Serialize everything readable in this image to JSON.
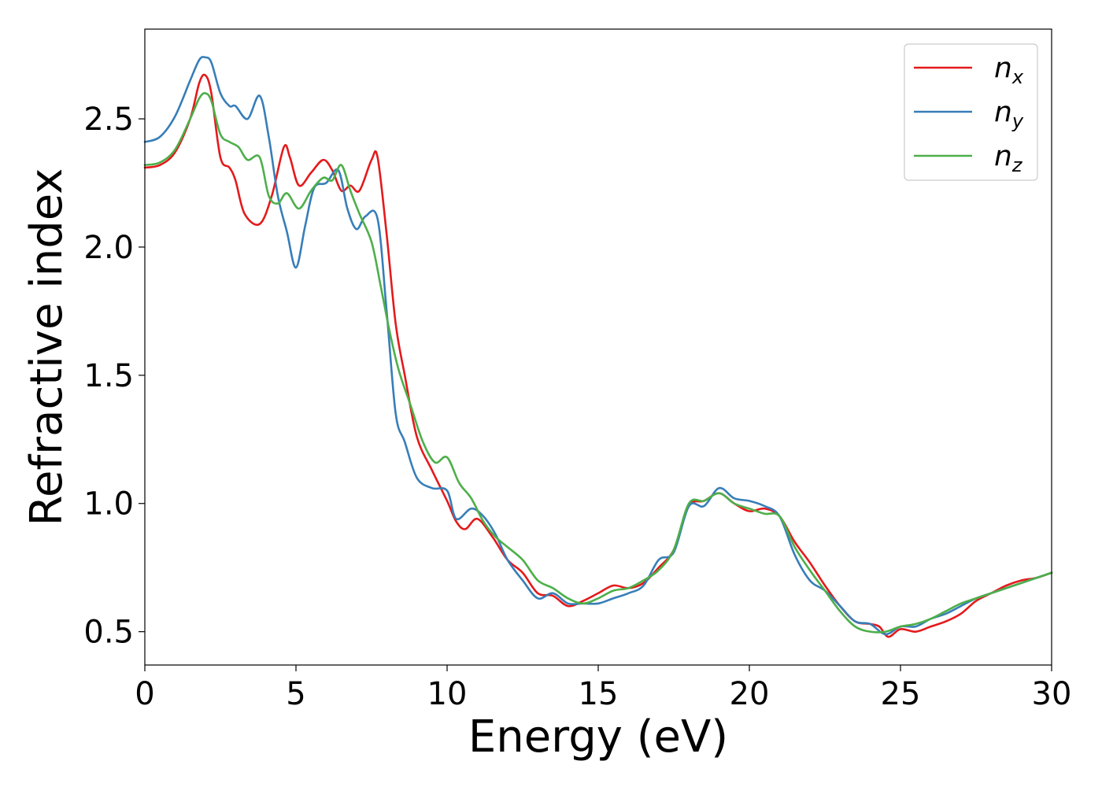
{
  "chart_data": {
    "type": "line",
    "title": "",
    "xlabel": "Energy (eV)",
    "ylabel": "Refractive index",
    "xlim": [
      0,
      30
    ],
    "ylim": [
      0.37,
      2.85
    ],
    "xticks": [
      0,
      5,
      10,
      15,
      20,
      25,
      30
    ],
    "xtick_labels": [
      "0",
      "5",
      "10",
      "15",
      "20",
      "25",
      "30"
    ],
    "yticks": [
      0.5,
      1.0,
      1.5,
      2.0,
      2.5
    ],
    "ytick_labels": [
      "0.5",
      "1.0",
      "1.5",
      "2.0",
      "2.5"
    ],
    "grid": false,
    "legend_position": "top-right",
    "series": [
      {
        "name": "n",
        "subscript": "x",
        "color": "#e41a1c",
        "x": [
          0,
          0.5,
          1.0,
          1.5,
          1.8,
          2.0,
          2.2,
          2.5,
          2.8,
          3.0,
          3.3,
          3.8,
          4.2,
          4.6,
          4.8,
          5.1,
          5.5,
          5.9,
          6.2,
          6.5,
          6.8,
          7.1,
          7.5,
          7.7,
          8.0,
          8.3,
          8.6,
          9.0,
          9.5,
          10.0,
          10.3,
          10.6,
          11.0,
          11.5,
          12.0,
          12.5,
          13.0,
          13.5,
          14.0,
          14.5,
          15.0,
          15.5,
          16.0,
          16.5,
          17.0,
          17.5,
          18.0,
          18.5,
          19.0,
          19.5,
          20.0,
          20.5,
          21.0,
          21.5,
          22.0,
          22.5,
          23.0,
          23.5,
          24.0,
          24.3,
          24.6,
          25.0,
          25.5,
          26.0,
          26.5,
          27.0,
          27.5,
          28.0,
          28.5,
          29.0,
          29.5,
          30.0
        ],
        "y": [
          2.31,
          2.32,
          2.37,
          2.5,
          2.64,
          2.67,
          2.6,
          2.35,
          2.31,
          2.26,
          2.13,
          2.09,
          2.2,
          2.39,
          2.35,
          2.24,
          2.29,
          2.34,
          2.3,
          2.22,
          2.24,
          2.22,
          2.34,
          2.35,
          2.05,
          1.7,
          1.5,
          1.26,
          1.13,
          1.01,
          0.93,
          0.9,
          0.94,
          0.87,
          0.78,
          0.73,
          0.65,
          0.64,
          0.6,
          0.62,
          0.65,
          0.68,
          0.67,
          0.69,
          0.75,
          0.82,
          0.99,
          1.01,
          1.04,
          1.0,
          0.97,
          0.98,
          0.95,
          0.85,
          0.77,
          0.68,
          0.6,
          0.54,
          0.53,
          0.52,
          0.48,
          0.51,
          0.5,
          0.52,
          0.54,
          0.57,
          0.62,
          0.65,
          0.68,
          0.7,
          0.71,
          0.73
        ]
      },
      {
        "name": "n",
        "subscript": "y",
        "color": "#377eb8",
        "x": [
          0,
          0.5,
          1.0,
          1.5,
          1.8,
          2.0,
          2.2,
          2.5,
          2.8,
          3.0,
          3.4,
          3.8,
          4.1,
          4.4,
          4.7,
          5.0,
          5.3,
          5.6,
          6.0,
          6.4,
          6.7,
          7.0,
          7.3,
          7.7,
          8.0,
          8.3,
          8.6,
          9.0,
          9.5,
          10.0,
          10.3,
          10.8,
          11.2,
          11.6,
          12.0,
          12.5,
          13.0,
          13.5,
          14.0,
          14.5,
          15.0,
          15.5,
          16.0,
          16.5,
          17.0,
          17.5,
          18.0,
          18.5,
          19.0,
          19.5,
          20.0,
          20.5,
          21.0,
          21.5,
          22.0,
          22.5,
          23.0,
          23.5,
          24.0,
          24.5,
          25.0,
          25.5,
          26.0,
          26.5,
          27.0,
          27.5,
          28.0,
          28.5,
          29.0,
          29.5,
          30.0
        ],
        "y": [
          2.41,
          2.43,
          2.51,
          2.65,
          2.73,
          2.74,
          2.72,
          2.6,
          2.55,
          2.55,
          2.5,
          2.59,
          2.43,
          2.2,
          2.06,
          1.92,
          2.08,
          2.23,
          2.25,
          2.3,
          2.15,
          2.07,
          2.12,
          2.11,
          1.75,
          1.35,
          1.24,
          1.1,
          1.06,
          1.05,
          0.94,
          0.98,
          0.95,
          0.88,
          0.78,
          0.7,
          0.63,
          0.65,
          0.61,
          0.61,
          0.61,
          0.63,
          0.65,
          0.68,
          0.78,
          0.81,
          0.99,
          0.99,
          1.06,
          1.02,
          1.01,
          0.99,
          0.95,
          0.8,
          0.7,
          0.66,
          0.6,
          0.54,
          0.53,
          0.49,
          0.52,
          0.52,
          0.55,
          0.57,
          0.6,
          0.63,
          0.65,
          0.67,
          0.69,
          0.71,
          0.73
        ]
      },
      {
        "name": "n",
        "subscript": "z",
        "color": "#4daf4a",
        "x": [
          0,
          0.5,
          1.0,
          1.5,
          1.8,
          2.0,
          2.2,
          2.5,
          2.8,
          3.1,
          3.4,
          3.8,
          4.1,
          4.4,
          4.7,
          5.1,
          5.5,
          5.9,
          6.2,
          6.5,
          6.8,
          7.1,
          7.5,
          7.8,
          8.1,
          8.4,
          8.8,
          9.2,
          9.6,
          10.0,
          10.4,
          10.8,
          11.2,
          11.6,
          12.0,
          12.5,
          13.0,
          13.5,
          14.0,
          14.5,
          15.0,
          15.5,
          16.0,
          16.5,
          17.0,
          17.5,
          18.0,
          18.5,
          19.0,
          19.5,
          20.0,
          20.5,
          21.0,
          21.5,
          22.0,
          22.5,
          23.0,
          23.5,
          24.0,
          24.5,
          25.0,
          25.5,
          26.0,
          26.5,
          27.0,
          27.5,
          28.0,
          28.5,
          29.0,
          29.5,
          30.0
        ],
        "y": [
          2.32,
          2.33,
          2.38,
          2.5,
          2.58,
          2.6,
          2.57,
          2.44,
          2.41,
          2.39,
          2.34,
          2.35,
          2.2,
          2.17,
          2.21,
          2.15,
          2.22,
          2.27,
          2.26,
          2.32,
          2.22,
          2.13,
          2.02,
          1.85,
          1.67,
          1.52,
          1.38,
          1.24,
          1.16,
          1.18,
          1.08,
          1.02,
          0.93,
          0.87,
          0.83,
          0.78,
          0.7,
          0.67,
          0.63,
          0.61,
          0.63,
          0.66,
          0.67,
          0.7,
          0.74,
          0.82,
          1.0,
          1.01,
          1.04,
          1.0,
          0.98,
          0.96,
          0.95,
          0.83,
          0.74,
          0.66,
          0.58,
          0.52,
          0.5,
          0.5,
          0.52,
          0.53,
          0.55,
          0.58,
          0.61,
          0.63,
          0.65,
          0.67,
          0.69,
          0.71,
          0.73
        ]
      }
    ]
  }
}
